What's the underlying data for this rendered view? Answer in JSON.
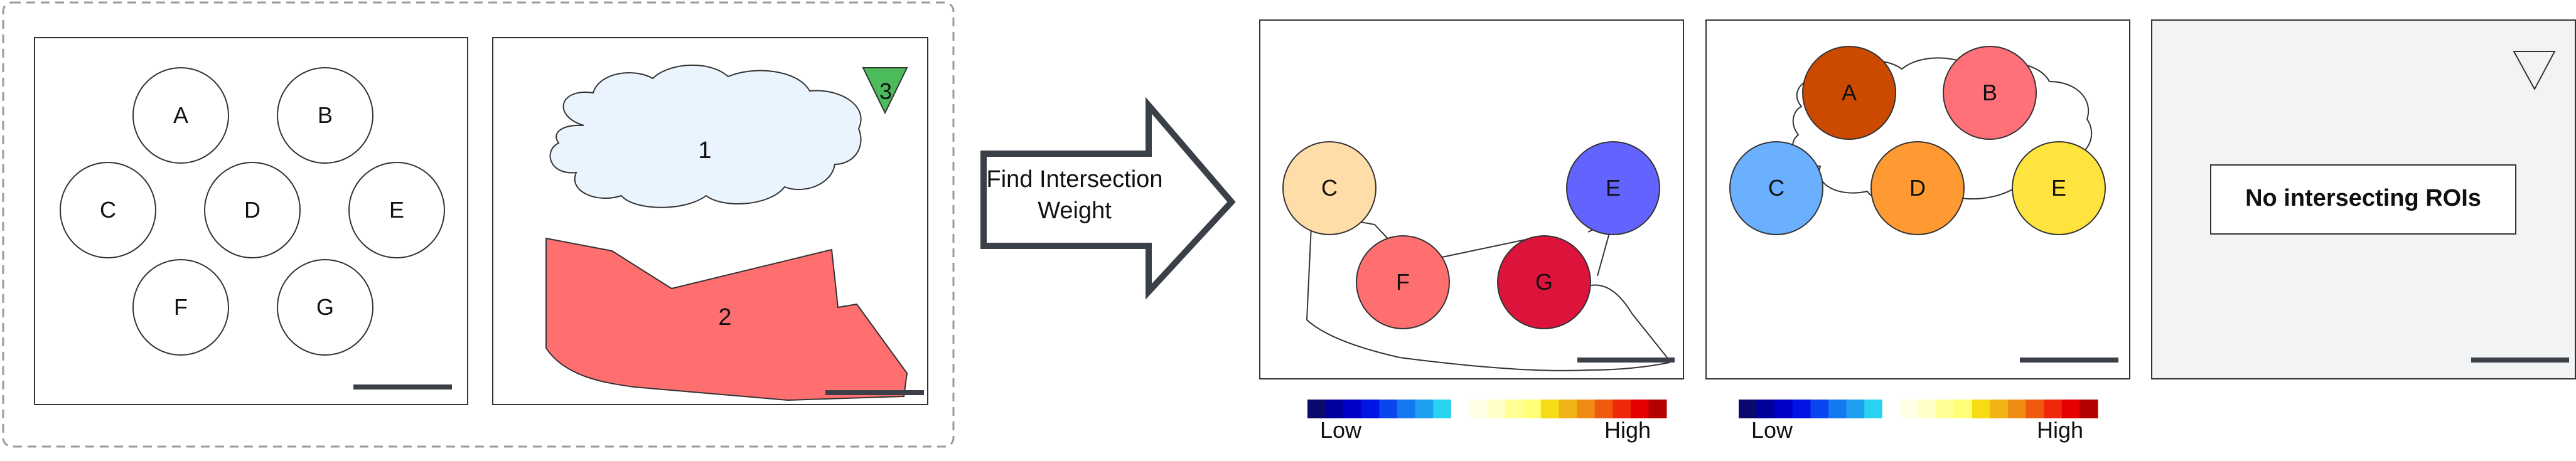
{
  "input_panel": {
    "circles_panel": {
      "circles": [
        {
          "label": "A"
        },
        {
          "label": "B"
        },
        {
          "label": "C"
        },
        {
          "label": "D"
        },
        {
          "label": "E"
        },
        {
          "label": "F"
        },
        {
          "label": "G"
        }
      ]
    },
    "shapes_panel": {
      "cloud_label": "1",
      "polygon_label": "2",
      "triangle_label": "3"
    }
  },
  "arrow": {
    "line1": "Find Intersection",
    "line2": "Weight"
  },
  "result_panel_1": {
    "circles": [
      {
        "label": "C",
        "color": "#FFDDA8"
      },
      {
        "label": "F",
        "color": "#FF6F6F"
      },
      {
        "label": "G",
        "color": "#DC143C"
      },
      {
        "label": "E",
        "color": "#6363FF"
      }
    ]
  },
  "result_panel_2": {
    "circles": [
      {
        "label": "A",
        "color": "#CC4A00"
      },
      {
        "label": "B",
        "color": "#FF7079"
      },
      {
        "label": "C",
        "color": "#6AB0FF"
      },
      {
        "label": "D",
        "color": "#FF9A33"
      },
      {
        "label": "E",
        "color": "#FFE33E"
      }
    ]
  },
  "result_panel_3": {
    "message": "No intersecting ROIs"
  },
  "colorbars": [
    {
      "low": "Low",
      "high": "High"
    },
    {
      "low": "Low",
      "high": "High"
    }
  ],
  "colorbar_colors": [
    "#0a0a6e",
    "#00009c",
    "#0000c8",
    "#0014e6",
    "#0a46f0",
    "#1478f0",
    "#1ea0f0",
    "#28d2f0",
    "#ffffff",
    "#ffffe6",
    "#ffffc8",
    "#ffff96",
    "#ffff78",
    "#f5dc14",
    "#f0b414",
    "#f08c14",
    "#f05a0f",
    "#f0280a",
    "#e60000",
    "#b40000"
  ]
}
